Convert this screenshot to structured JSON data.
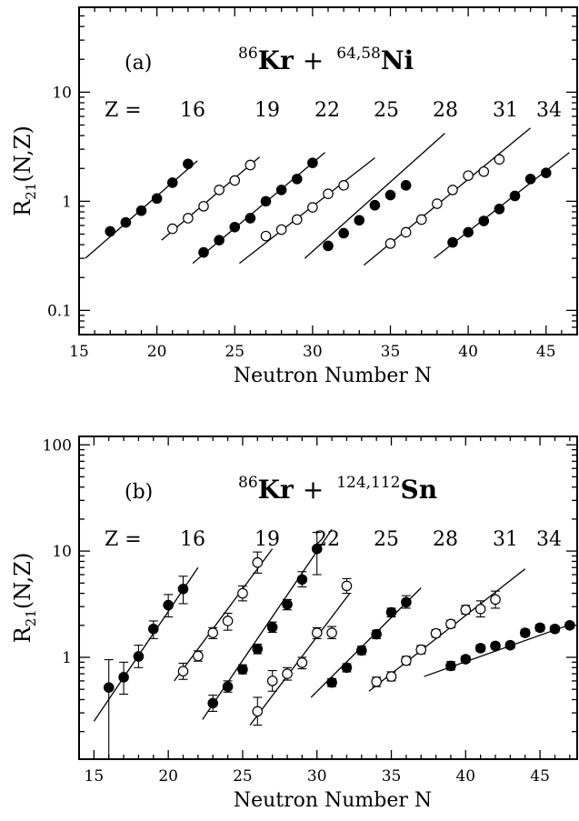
{
  "chart_data": [
    {
      "panel_label": "(a)",
      "type": "scatter",
      "title": {
        "proj_mass": "86",
        "proj": "Kr",
        "plus": "+",
        "targ_mass": "64,58",
        "targ": "Ni"
      },
      "xlabel": "Neutron Number N",
      "ylabel_main": "R",
      "ylabel_sub": "21",
      "ylabel_tail": "(N,Z)",
      "xlim": [
        15,
        47
      ],
      "ylim": [
        0.06,
        60
      ],
      "yscale": "log",
      "x_ticks": [
        "15",
        "20",
        "25",
        "30",
        "35",
        "40",
        "45"
      ],
      "y_ticks": [
        {
          "value": 0.1,
          "label": "0.1"
        },
        {
          "value": 1,
          "label": "1"
        },
        {
          "value": 10,
          "label": "10"
        }
      ],
      "z_header": "Z =",
      "z_labels": [
        "16",
        "19",
        "22",
        "25",
        "28",
        "31",
        "34"
      ],
      "groups": [
        {
          "z": 16,
          "filled": true,
          "points": [
            [
              17,
              0.53
            ],
            [
              18,
              0.64
            ],
            [
              19,
              0.82
            ],
            [
              20,
              1.06
            ],
            [
              21,
              1.48
            ],
            [
              22,
              2.2
            ]
          ],
          "fit": [
            [
              15.4,
              0.3
            ],
            [
              22.6,
              2.35
            ]
          ]
        },
        {
          "z": 17,
          "filled": false,
          "points": [
            [
              21,
              0.56
            ],
            [
              22,
              0.7
            ],
            [
              23,
              0.9
            ],
            [
              24,
              1.27
            ],
            [
              25,
              1.55
            ],
            [
              26,
              2.15
            ]
          ],
          "fit": [
            [
              20.3,
              0.44
            ],
            [
              26.6,
              2.55
            ]
          ]
        },
        {
          "z": 18,
          "filled": true,
          "points": [
            [
              23,
              0.34
            ],
            [
              24,
              0.44
            ],
            [
              25,
              0.58
            ],
            [
              26,
              0.7
            ],
            [
              27,
              1.0
            ],
            [
              28,
              1.27
            ],
            [
              29,
              1.6
            ],
            [
              30,
              2.25
            ]
          ],
          "fit": [
            [
              22.3,
              0.27
            ],
            [
              30.8,
              2.8
            ]
          ]
        },
        {
          "z": 19,
          "filled": false,
          "points": [
            [
              27,
              0.48
            ],
            [
              28,
              0.55
            ],
            [
              29,
              0.68
            ],
            [
              30,
              0.88
            ],
            [
              31,
              1.17
            ],
            [
              32,
              1.4
            ]
          ],
          "fit": [
            [
              25.3,
              0.27
            ],
            [
              34,
              2.5
            ]
          ]
        },
        {
          "z": 20,
          "filled": true,
          "points": [
            [
              31,
              0.39
            ],
            [
              32,
              0.51
            ],
            [
              33,
              0.67
            ],
            [
              34,
              0.92
            ],
            [
              35,
              1.14
            ],
            [
              36,
              1.4
            ]
          ],
          "fit": [
            [
              29.5,
              0.3
            ],
            [
              38.5,
              4.2
            ]
          ]
        },
        {
          "z": 21,
          "filled": false,
          "points": [
            [
              35,
              0.41
            ],
            [
              36,
              0.52
            ],
            [
              37,
              0.68
            ],
            [
              38,
              0.95
            ],
            [
              39,
              1.27
            ],
            [
              40,
              1.72
            ],
            [
              41,
              1.87
            ],
            [
              42,
              2.42
            ]
          ],
          "fit": [
            [
              33.3,
              0.26
            ],
            [
              44,
              4.7
            ]
          ]
        },
        {
          "z": 22,
          "filled": true,
          "points": [
            [
              39,
              0.42
            ],
            [
              40,
              0.52
            ],
            [
              41,
              0.66
            ],
            [
              42,
              0.85
            ],
            [
              43,
              1.12
            ],
            [
              44,
              1.6
            ],
            [
              45,
              1.82
            ]
          ],
          "fit": [
            [
              37.8,
              0.3
            ],
            [
              46.5,
              2.8
            ]
          ]
        }
      ]
    },
    {
      "panel_label": "(b)",
      "type": "scatter",
      "title": {
        "proj_mass": "86",
        "proj": "Kr",
        "plus": "+",
        "targ_mass": "124,112",
        "targ": "Sn"
      },
      "xlabel": "Neutron Number N",
      "ylabel_main": "R",
      "ylabel_sub": "21",
      "ylabel_tail": "(N,Z)",
      "xlim": [
        14,
        47.5
      ],
      "ylim": [
        0.11,
        120
      ],
      "yscale": "log",
      "x_ticks": [
        "15",
        "20",
        "25",
        "30",
        "35",
        "40",
        "45"
      ],
      "y_ticks": [
        {
          "value": 1,
          "label": "1"
        },
        {
          "value": 10,
          "label": "10"
        },
        {
          "value": 100,
          "label": "100"
        }
      ],
      "z_header": "Z =",
      "z_labels": [
        "16",
        "19",
        "22",
        "25",
        "28",
        "31",
        "34"
      ],
      "groups": [
        {
          "z": 16,
          "filled": true,
          "points": [
            [
              16,
              0.52,
              0.11,
              0.95
            ],
            [
              17,
              0.65,
              0.45,
              0.9
            ],
            [
              18,
              1.02,
              0.8,
              1.3
            ],
            [
              19,
              1.85,
              1.5,
              2.2
            ],
            [
              20,
              3.1,
              2.4,
              3.9
            ],
            [
              21,
              4.4,
              3.2,
              5.8
            ]
          ],
          "fit": [
            [
              15,
              0.25
            ],
            [
              22,
              7.0
            ]
          ]
        },
        {
          "z": 17,
          "filled": false,
          "points": [
            [
              21,
              0.74,
              0.62,
              0.88
            ],
            [
              22,
              1.03,
              0.92,
              1.15
            ],
            [
              23,
              1.7,
              1.5,
              1.9
            ],
            [
              24,
              2.2,
              1.8,
              2.6
            ],
            [
              25,
              4.0,
              3.4,
              4.7
            ],
            [
              26,
              7.8,
              6.2,
              9.8
            ]
          ],
          "fit": [
            [
              20.4,
              0.6
            ],
            [
              27,
              10.5
            ]
          ]
        },
        {
          "z": 18,
          "filled": true,
          "points": [
            [
              23,
              0.37,
              0.31,
              0.44
            ],
            [
              24,
              0.53,
              0.47,
              0.6
            ],
            [
              25,
              0.77,
              0.7,
              0.85
            ],
            [
              26,
              1.2,
              1.08,
              1.33
            ],
            [
              27,
              1.92,
              1.72,
              2.15
            ],
            [
              28,
              3.15,
              2.8,
              3.5
            ],
            [
              29,
              5.4,
              4.6,
              6.4
            ],
            [
              30,
              10.5,
              6.0,
              15.0
            ]
          ],
          "fit": [
            [
              22.3,
              0.26
            ],
            [
              31,
              16
            ]
          ]
        },
        {
          "z": 19,
          "filled": false,
          "points": [
            [
              26,
              0.31,
              0.23,
              0.42
            ],
            [
              27,
              0.6,
              0.48,
              0.75
            ],
            [
              28,
              0.7,
              0.61,
              0.8
            ],
            [
              29,
              0.89,
              0.78,
              1.0
            ],
            [
              30,
              1.7,
              1.5,
              1.9
            ],
            [
              31,
              1.7,
              1.5,
              1.95
            ],
            [
              32,
              4.7,
              4.0,
              5.5
            ]
          ],
          "fit": [
            [
              25.5,
              0.23
            ],
            [
              32.2,
              4.0
            ]
          ]
        },
        {
          "z": 20,
          "filled": true,
          "points": [
            [
              31,
              0.58,
              0.53,
              0.63
            ],
            [
              32,
              0.8,
              0.73,
              0.87
            ],
            [
              33,
              1.16,
              1.06,
              1.27
            ],
            [
              34,
              1.65,
              1.5,
              1.8
            ],
            [
              35,
              2.65,
              2.4,
              2.9
            ],
            [
              36,
              3.3,
              2.9,
              3.8
            ]
          ],
          "fit": [
            [
              29.6,
              0.42
            ],
            [
              37,
              4.5
            ]
          ]
        },
        {
          "z": 21,
          "filled": false,
          "points": [
            [
              34,
              0.59,
              0.53,
              0.65
            ],
            [
              35,
              0.66,
              0.6,
              0.73
            ],
            [
              36,
              0.93,
              0.85,
              1.02
            ],
            [
              37,
              1.18,
              1.08,
              1.29
            ],
            [
              38,
              1.68,
              1.55,
              1.82
            ],
            [
              39,
              2.06,
              1.9,
              2.23
            ],
            [
              40,
              2.8,
              2.55,
              3.08
            ],
            [
              41,
              2.85,
              2.4,
              3.4
            ],
            [
              42,
              3.5,
              2.9,
              4.2
            ]
          ],
          "fit": [
            [
              33.5,
              0.48
            ],
            [
              44,
              6.8
            ]
          ]
        },
        {
          "z": 22,
          "filled": true,
          "points": [
            [
              39,
              0.83,
              0.76,
              0.91
            ],
            [
              40,
              0.96,
              0.9,
              1.03
            ],
            [
              41,
              1.22,
              1.14,
              1.31
            ],
            [
              42,
              1.28,
              1.2,
              1.37
            ],
            [
              43,
              1.3,
              1.22,
              1.39
            ],
            [
              44,
              1.7,
              1.58,
              1.83
            ],
            [
              45,
              1.9,
              1.77,
              2.04
            ],
            [
              46,
              1.85,
              1.73,
              1.98
            ],
            [
              47,
              2.0,
              1.88,
              2.13
            ]
          ],
          "fit": [
            [
              37.2,
              0.66
            ],
            [
              47.3,
              2.1
            ]
          ]
        }
      ]
    }
  ]
}
